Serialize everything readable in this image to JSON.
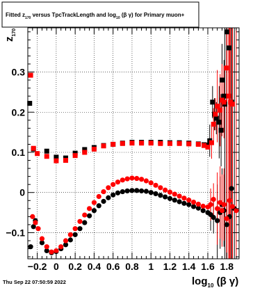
{
  "chart_data": {
    "type": "scatter",
    "title": "Fitted z_170 versus TpcTrackLength and log_10 (β γ) for Primary muon+",
    "title_parts": {
      "a": "Fitted  z",
      "sub1": "170",
      "b": "  versus TpcTrackLength and log",
      "sub2": "10",
      "c": " (β  γ) for Primary muon+"
    },
    "xlabel": {
      "main": "log",
      "sub": "10",
      "tail": " (β γ)"
    },
    "ylabel": {
      "main": "z",
      "sub": "170"
    },
    "timestamp": "Thu Sep 22 07:50:59 2022",
    "xlim": [
      -0.3,
      1.93
    ],
    "ylim": [
      -0.165,
      0.41
    ],
    "grid": true,
    "legend": "none",
    "x_ticks": [
      {
        "v": -0.2,
        "label": "−0.2"
      },
      {
        "v": 0,
        "label": "0"
      },
      {
        "v": 0.2,
        "label": "0.2"
      },
      {
        "v": 0.4,
        "label": "0.4"
      },
      {
        "v": 0.6,
        "label": "0.6"
      },
      {
        "v": 0.8,
        "label": "0.8"
      },
      {
        "v": 1.0,
        "label": "1"
      },
      {
        "v": 1.2,
        "label": "1.2"
      },
      {
        "v": 1.4,
        "label": "1.4"
      },
      {
        "v": 1.6,
        "label": "1.6"
      },
      {
        "v": 1.8,
        "label": "1.8"
      }
    ],
    "y_ticks": [
      {
        "v": -0.1,
        "label": "−0.1"
      },
      {
        "v": 0,
        "label": "0"
      },
      {
        "v": 0.1,
        "label": "0.1"
      },
      {
        "v": 0.2,
        "label": "0.2"
      },
      {
        "v": 0.3,
        "label": "0.3"
      }
    ],
    "colors": {
      "series_black": "#000000",
      "series_red": "#ff0000",
      "frame": "#000000",
      "grid": "#000000"
    },
    "series": [
      {
        "color": "#000000",
        "marker": "square",
        "points": [
          [
            -0.28,
            0.222
          ],
          [
            -0.24,
            0.108
          ],
          [
            -0.1,
            0.103
          ],
          [
            0.0,
            0.088
          ],
          [
            0.1,
            0.086
          ],
          [
            0.2,
            0.098
          ],
          [
            0.3,
            0.107
          ],
          [
            0.4,
            0.112
          ],
          [
            0.5,
            0.117
          ],
          [
            0.6,
            0.12
          ],
          [
            0.7,
            0.123
          ],
          [
            0.8,
            0.125
          ],
          [
            0.9,
            0.125
          ],
          [
            1.0,
            0.125
          ],
          [
            1.1,
            0.125
          ],
          [
            1.2,
            0.124
          ],
          [
            1.3,
            0.124
          ],
          [
            1.4,
            0.123
          ],
          [
            1.5,
            0.121
          ],
          [
            1.56,
            0.119
          ],
          [
            1.6,
            0.118
          ],
          [
            1.62,
            0.129
          ],
          [
            1.65,
            0.225
          ],
          [
            1.67,
            0.195
          ],
          [
            1.69,
            0.185
          ],
          [
            1.72,
            0.175
          ],
          [
            1.74,
            0.155
          ],
          [
            1.75,
            0.28
          ],
          [
            1.77,
            0.24
          ],
          [
            1.78,
            0.22
          ],
          [
            1.8,
            0.4
          ],
          [
            1.82,
            0.36
          ],
          [
            1.85,
            0.225
          ]
        ]
      },
      {
        "color": "#ff0000",
        "marker": "square",
        "points": [
          [
            -0.27,
            0.292
          ],
          [
            -0.24,
            0.11
          ],
          [
            -0.2,
            0.097
          ],
          [
            -0.1,
            0.09
          ],
          [
            0.0,
            0.079
          ],
          [
            0.1,
            0.08
          ],
          [
            0.2,
            0.092
          ],
          [
            0.3,
            0.1
          ],
          [
            0.4,
            0.108
          ],
          [
            0.5,
            0.116
          ],
          [
            0.6,
            0.12
          ],
          [
            0.7,
            0.122
          ],
          [
            0.8,
            0.123
          ],
          [
            0.9,
            0.123
          ],
          [
            1.0,
            0.123
          ],
          [
            1.1,
            0.122
          ],
          [
            1.2,
            0.122
          ],
          [
            1.3,
            0.122
          ],
          [
            1.4,
            0.121
          ],
          [
            1.5,
            0.12
          ],
          [
            1.56,
            0.117
          ],
          [
            1.6,
            0.113
          ],
          [
            1.64,
            0.124
          ],
          [
            1.66,
            0.17
          ],
          [
            1.68,
            0.195
          ],
          [
            1.7,
            0.215
          ],
          [
            1.73,
            0.205
          ],
          [
            1.75,
            0.23
          ],
          [
            1.77,
            0.225
          ],
          [
            1.8,
            0.31
          ],
          [
            1.82,
            0.24
          ],
          [
            1.84,
            0.225
          ],
          [
            1.86,
            0.22
          ]
        ]
      },
      {
        "color": "#000000",
        "marker": "circle",
        "points": [
          [
            -0.27,
            -0.135
          ],
          [
            -0.24,
            -0.085
          ],
          [
            -0.22,
            -0.07
          ],
          [
            -0.15,
            -0.125
          ],
          [
            -0.1,
            -0.145
          ],
          [
            -0.05,
            -0.15
          ],
          [
            0.0,
            -0.147
          ],
          [
            0.05,
            -0.14
          ],
          [
            0.1,
            -0.13
          ],
          [
            0.15,
            -0.118
          ],
          [
            0.2,
            -0.105
          ],
          [
            0.25,
            -0.09
          ],
          [
            0.3,
            -0.075
          ],
          [
            0.35,
            -0.058
          ],
          [
            0.4,
            -0.045
          ],
          [
            0.45,
            -0.033
          ],
          [
            0.5,
            -0.022
          ],
          [
            0.55,
            -0.013
          ],
          [
            0.6,
            -0.006
          ],
          [
            0.65,
            -0.001
          ],
          [
            0.7,
            0.002
          ],
          [
            0.75,
            0.004
          ],
          [
            0.8,
            0.005
          ],
          [
            0.85,
            0.005
          ],
          [
            0.9,
            0.004
          ],
          [
            0.95,
            0.003
          ],
          [
            1.0,
            0.0
          ],
          [
            1.05,
            -0.003
          ],
          [
            1.1,
            -0.007
          ],
          [
            1.15,
            -0.011
          ],
          [
            1.2,
            -0.015
          ],
          [
            1.25,
            -0.019
          ],
          [
            1.3,
            -0.023
          ],
          [
            1.35,
            -0.027
          ],
          [
            1.4,
            -0.03
          ],
          [
            1.45,
            -0.035
          ],
          [
            1.5,
            -0.039
          ],
          [
            1.55,
            -0.045
          ],
          [
            1.6,
            -0.05
          ],
          [
            1.63,
            -0.055
          ],
          [
            1.66,
            -0.062
          ],
          [
            1.7,
            -0.07
          ],
          [
            1.73,
            -0.05
          ],
          [
            1.75,
            -0.03
          ],
          [
            1.77,
            -0.045
          ],
          [
            1.8,
            -0.08
          ],
          [
            1.83,
            -0.06
          ],
          [
            1.85,
            0.01
          ],
          [
            1.88,
            -0.04
          ]
        ]
      },
      {
        "color": "#ff0000",
        "marker": "circle",
        "points": [
          [
            -0.25,
            -0.06
          ],
          [
            -0.22,
            -0.075
          ],
          [
            -0.19,
            -0.09
          ],
          [
            -0.15,
            -0.115
          ],
          [
            -0.1,
            -0.135
          ],
          [
            -0.05,
            -0.148
          ],
          [
            0.0,
            -0.145
          ],
          [
            0.05,
            -0.135
          ],
          [
            0.1,
            -0.12
          ],
          [
            0.15,
            -0.105
          ],
          [
            0.2,
            -0.09
          ],
          [
            0.25,
            -0.072
          ],
          [
            0.3,
            -0.056
          ],
          [
            0.35,
            -0.04
          ],
          [
            0.4,
            -0.025
          ],
          [
            0.45,
            -0.01
          ],
          [
            0.5,
            0.002
          ],
          [
            0.55,
            0.012
          ],
          [
            0.6,
            0.02
          ],
          [
            0.65,
            0.026
          ],
          [
            0.7,
            0.031
          ],
          [
            0.75,
            0.034
          ],
          [
            0.8,
            0.036
          ],
          [
            0.85,
            0.035
          ],
          [
            0.9,
            0.033
          ],
          [
            0.95,
            0.029
          ],
          [
            1.0,
            0.024
          ],
          [
            1.05,
            0.018
          ],
          [
            1.1,
            0.012
          ],
          [
            1.15,
            0.006
          ],
          [
            1.2,
            0.001
          ],
          [
            1.25,
            -0.004
          ],
          [
            1.3,
            -0.009
          ],
          [
            1.35,
            -0.014
          ],
          [
            1.4,
            -0.019
          ],
          [
            1.45,
            -0.024
          ],
          [
            1.5,
            -0.029
          ],
          [
            1.55,
            -0.034
          ],
          [
            1.6,
            -0.036
          ],
          [
            1.63,
            -0.03
          ],
          [
            1.66,
            -0.017
          ],
          [
            1.7,
            -0.04
          ],
          [
            1.73,
            -0.025
          ],
          [
            1.75,
            -0.045
          ],
          [
            1.77,
            -0.03
          ],
          [
            1.8,
            -0.065
          ],
          [
            1.83,
            -0.02
          ],
          [
            1.86,
            -0.035
          ],
          [
            1.9,
            -0.045
          ]
        ]
      }
    ]
  }
}
